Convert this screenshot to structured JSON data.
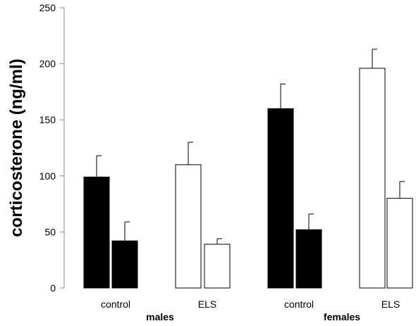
{
  "chart_data": {
    "type": "bar",
    "title": "",
    "xlabel": "",
    "ylabel": "corticosterone (ng/ml)",
    "ylim": [
      0,
      250
    ],
    "yticks": [
      0,
      50,
      100,
      150,
      200,
      250
    ],
    "grid": false,
    "legend": "none",
    "colors": {
      "control": "#000000",
      "ELS": "#ffffff",
      "stroke": "#000000"
    },
    "categories": [
      "control",
      "ELS",
      "control",
      "ELS"
    ],
    "groups": [
      "males",
      "females"
    ],
    "bars": [
      {
        "group": "males",
        "category": "control",
        "fill": "#000000",
        "value": 99,
        "error": 19
      },
      {
        "group": "males",
        "category": "control",
        "fill": "#000000",
        "value": 42,
        "error": 17
      },
      {
        "group": "males",
        "category": "ELS",
        "fill": "#ffffff",
        "value": 110,
        "error": 20
      },
      {
        "group": "males",
        "category": "ELS",
        "fill": "#ffffff",
        "value": 39,
        "error": 5
      },
      {
        "group": "females",
        "category": "control",
        "fill": "#000000",
        "value": 160,
        "error": 22
      },
      {
        "group": "females",
        "category": "control",
        "fill": "#000000",
        "value": 52,
        "error": 14
      },
      {
        "group": "females",
        "category": "ELS",
        "fill": "#ffffff",
        "value": 196,
        "error": 17
      },
      {
        "group": "females",
        "category": "ELS",
        "fill": "#ffffff",
        "value": 80,
        "error": 15
      }
    ]
  }
}
